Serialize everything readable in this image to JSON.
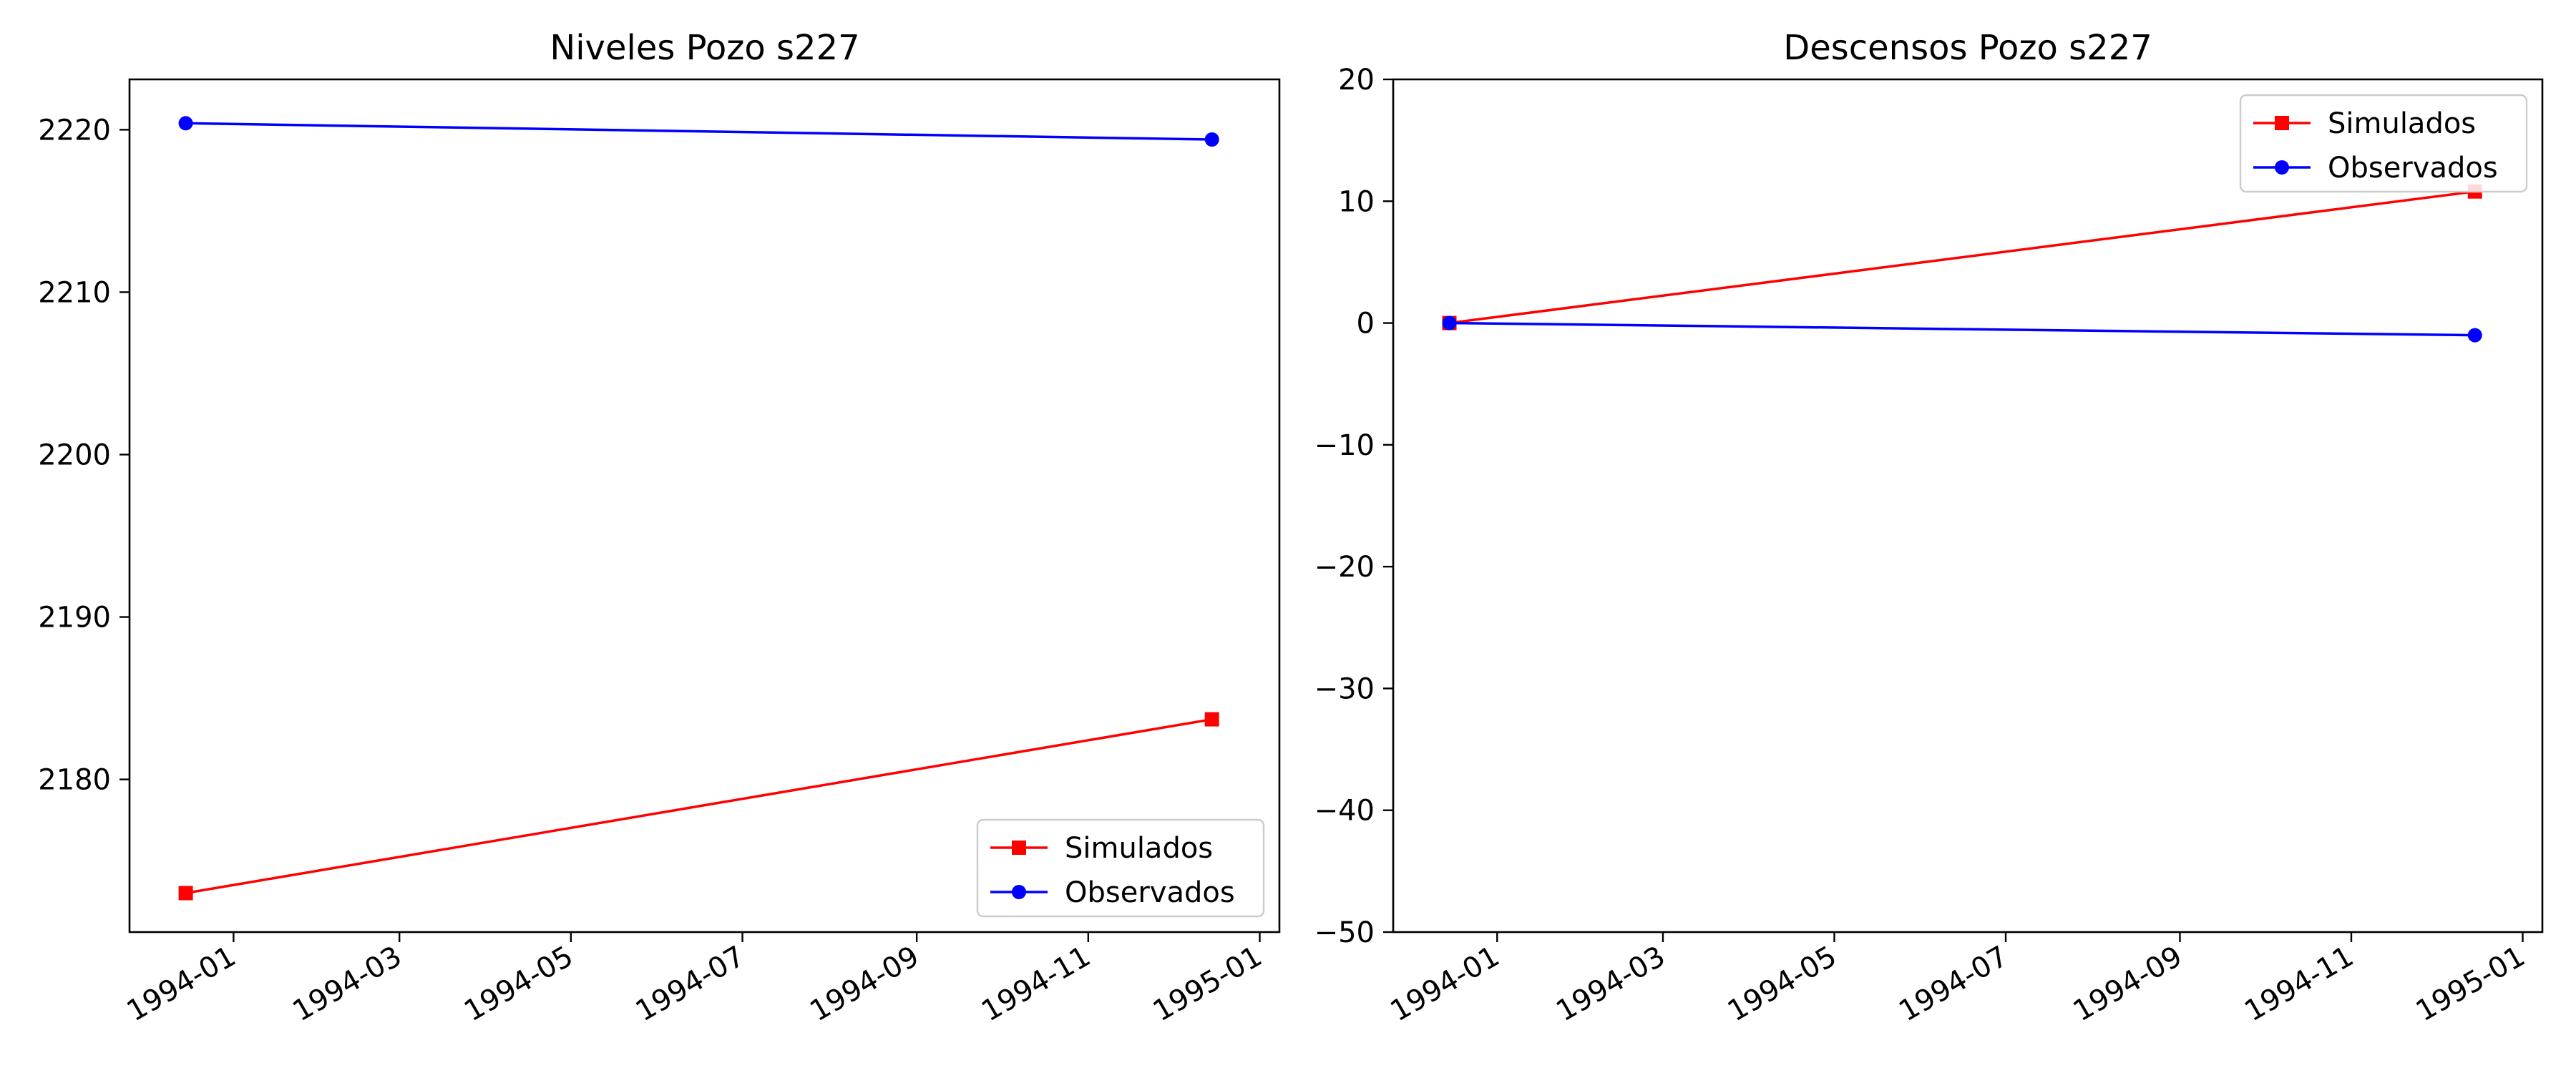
{
  "chart_data": [
    {
      "type": "line",
      "title": "Niveles Pozo s227",
      "xlabel": "",
      "ylabel": "",
      "x_axis_type": "date",
      "xlim": [
        "1993-11-25",
        "1995-01-08"
      ],
      "ylim": [
        2170.6,
        2223.1
      ],
      "x_ticks": [
        "1994-01",
        "1994-03",
        "1994-05",
        "1994-07",
        "1994-09",
        "1994-11",
        "1995-01"
      ],
      "y_ticks": [
        2180,
        2190,
        2200,
        2210,
        2220
      ],
      "y_tick_labels": [
        "2180",
        "2190",
        "2200",
        "2210",
        "2220"
      ],
      "legend_position": "lower-right",
      "grid": false,
      "series": [
        {
          "name": "Simulados",
          "color": "#ff0000",
          "marker": "square",
          "points": [
            {
              "x": "1993-12-15",
              "y": 2173.0
            },
            {
              "x": "1994-12-15",
              "y": 2183.7
            }
          ]
        },
        {
          "name": "Observados",
          "color": "#0000ff",
          "marker": "circle",
          "points": [
            {
              "x": "1993-12-15",
              "y": 2220.4
            },
            {
              "x": "1994-12-15",
              "y": 2219.4
            }
          ]
        }
      ]
    },
    {
      "type": "line",
      "title": "Descensos Pozo s227",
      "xlabel": "",
      "ylabel": "",
      "x_axis_type": "date",
      "xlim": [
        "1993-11-25",
        "1995-01-08"
      ],
      "ylim": [
        -50,
        20
      ],
      "x_ticks": [
        "1994-01",
        "1994-03",
        "1994-05",
        "1994-07",
        "1994-09",
        "1994-11",
        "1995-01"
      ],
      "y_ticks": [
        -50,
        -40,
        -30,
        -20,
        -10,
        0,
        10,
        20
      ],
      "y_tick_labels": [
        "−50",
        "−40",
        "−30",
        "−20",
        "−10",
        "0",
        "10",
        "20"
      ],
      "legend_position": "upper-right",
      "grid": false,
      "series": [
        {
          "name": "Simulados",
          "color": "#ff0000",
          "marker": "square",
          "points": [
            {
              "x": "1993-12-15",
              "y": 0.0
            },
            {
              "x": "1994-12-15",
              "y": 10.8
            }
          ]
        },
        {
          "name": "Observados",
          "color": "#0000ff",
          "marker": "circle",
          "points": [
            {
              "x": "1993-12-15",
              "y": 0.0
            },
            {
              "x": "1994-12-15",
              "y": -1.0
            }
          ]
        }
      ]
    }
  ]
}
